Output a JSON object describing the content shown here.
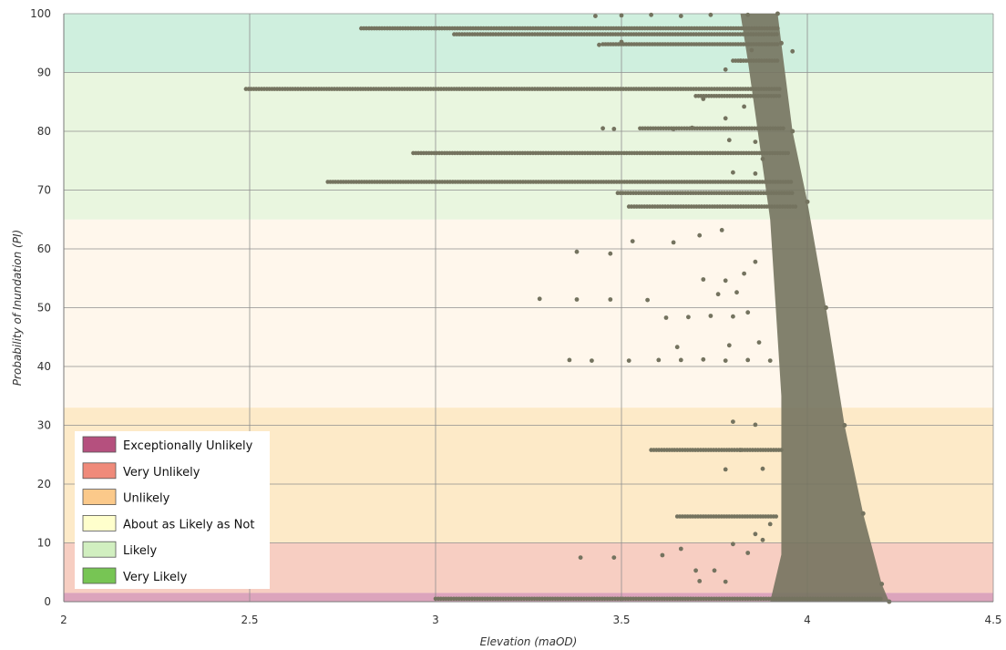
{
  "chart_data": {
    "type": "scatter",
    "title": "",
    "xlabel": "Elevation (maOD)",
    "ylabel": "Probability of Inundation (PI)",
    "xlim": [
      2,
      4.5
    ],
    "ylim": [
      0,
      100
    ],
    "x_ticks": [
      2,
      2.5,
      3,
      3.5,
      4,
      4.5
    ],
    "y_ticks": [
      0,
      10,
      20,
      30,
      40,
      50,
      60,
      70,
      80,
      90,
      100
    ],
    "grid": true,
    "legend_position": "bottom-left",
    "point_color": "#74735f",
    "bands": [
      {
        "name": "Exceptionally Unlikely",
        "from": 0,
        "to": 1.5,
        "color": "#c05a85"
      },
      {
        "name": "Very Unlikely",
        "from": 1.5,
        "to": 10,
        "color": "#f1a690"
      },
      {
        "name": "Unlikely",
        "from": 10,
        "to": 33,
        "color": "#fcd99a"
      },
      {
        "name": "About as Likely as Not",
        "from": 33,
        "to": 65,
        "color": "#fff0dd"
      },
      {
        "name": "Likely",
        "from": 65,
        "to": 90,
        "color": "#d7eec4"
      },
      {
        "name": "Very Likely",
        "from": 90,
        "to": 100,
        "color": "#a8e2c2"
      }
    ],
    "legend": [
      {
        "label": "Exceptionally Unlikely",
        "color": "#b5507e"
      },
      {
        "label": "Very Unlikely",
        "color": "#ef8a7a"
      },
      {
        "label": "Unlikely",
        "color": "#fbc98a"
      },
      {
        "label": "About as Likely as Not",
        "color": "#ffffcc"
      },
      {
        "label": "Likely",
        "color": "#d1efc0"
      },
      {
        "label": "Very Likely",
        "color": "#77c554"
      }
    ],
    "boundary_series": {
      "name": "",
      "x": [
        3.92,
        3.93,
        3.96,
        4.0,
        4.05,
        4.1,
        4.15,
        4.2,
        4.22
      ],
      "y": [
        100,
        95,
        80,
        68,
        50,
        30,
        15,
        3,
        0
      ]
    },
    "horizontal_runs": [
      {
        "y": 97.5,
        "x_from": 2.8,
        "x_to": 3.92
      },
      {
        "y": 96.5,
        "x_from": 3.05,
        "x_to": 3.92
      },
      {
        "y": 94.8,
        "x_from": 3.45,
        "x_to": 3.92
      },
      {
        "y": 92.0,
        "x_from": 3.8,
        "x_to": 3.92
      },
      {
        "y": 87.2,
        "x_from": 2.49,
        "x_to": 3.93
      },
      {
        "y": 86.0,
        "x_from": 3.7,
        "x_to": 3.93
      },
      {
        "y": 80.5,
        "x_from": 3.55,
        "x_to": 3.94
      },
      {
        "y": 76.3,
        "x_from": 2.94,
        "x_to": 3.95
      },
      {
        "y": 71.4,
        "x_from": 2.71,
        "x_to": 3.96
      },
      {
        "y": 69.5,
        "x_from": 3.49,
        "x_to": 3.96
      },
      {
        "y": 67.2,
        "x_from": 3.52,
        "x_to": 3.97
      },
      {
        "y": 25.8,
        "x_from": 3.58,
        "x_to": 3.93
      },
      {
        "y": 14.5,
        "x_from": 3.65,
        "x_to": 3.92
      },
      {
        "y": 0.5,
        "x_from": 3.0,
        "x_to": 4.2
      }
    ],
    "scattered_points": [
      {
        "x": 3.28,
        "y": 51.5
      },
      {
        "x": 3.38,
        "y": 59.5
      },
      {
        "x": 3.47,
        "y": 59.2
      },
      {
        "x": 3.53,
        "y": 61.3
      },
      {
        "x": 3.64,
        "y": 61.1
      },
      {
        "x": 3.71,
        "y": 62.3
      },
      {
        "x": 3.77,
        "y": 63.2
      },
      {
        "x": 3.38,
        "y": 51.4
      },
      {
        "x": 3.47,
        "y": 51.4
      },
      {
        "x": 3.57,
        "y": 51.3
      },
      {
        "x": 3.62,
        "y": 48.3
      },
      {
        "x": 3.68,
        "y": 48.4
      },
      {
        "x": 3.74,
        "y": 48.6
      },
      {
        "x": 3.8,
        "y": 48.5
      },
      {
        "x": 3.84,
        "y": 49.2
      },
      {
        "x": 3.36,
        "y": 41.1
      },
      {
        "x": 3.42,
        "y": 41.0
      },
      {
        "x": 3.52,
        "y": 41.0
      },
      {
        "x": 3.6,
        "y": 41.1
      },
      {
        "x": 3.66,
        "y": 41.1
      },
      {
        "x": 3.72,
        "y": 41.2
      },
      {
        "x": 3.78,
        "y": 41.0
      },
      {
        "x": 3.84,
        "y": 41.1
      },
      {
        "x": 3.9,
        "y": 41.0
      },
      {
        "x": 3.65,
        "y": 43.3
      },
      {
        "x": 3.79,
        "y": 43.6
      },
      {
        "x": 3.87,
        "y": 44.1
      },
      {
        "x": 3.72,
        "y": 54.8
      },
      {
        "x": 3.78,
        "y": 54.6
      },
      {
        "x": 3.83,
        "y": 55.8
      },
      {
        "x": 3.76,
        "y": 52.3
      },
      {
        "x": 3.81,
        "y": 52.6
      },
      {
        "x": 3.86,
        "y": 57.8
      },
      {
        "x": 3.8,
        "y": 30.6
      },
      {
        "x": 3.86,
        "y": 30.1
      },
      {
        "x": 3.82,
        "y": 25.8
      },
      {
        "x": 3.78,
        "y": 22.5
      },
      {
        "x": 3.88,
        "y": 22.6
      },
      {
        "x": 3.39,
        "y": 7.5
      },
      {
        "x": 3.48,
        "y": 7.5
      },
      {
        "x": 3.61,
        "y": 7.9
      },
      {
        "x": 3.66,
        "y": 9.0
      },
      {
        "x": 3.7,
        "y": 5.3
      },
      {
        "x": 3.75,
        "y": 5.3
      },
      {
        "x": 3.8,
        "y": 9.8
      },
      {
        "x": 3.84,
        "y": 8.3
      },
      {
        "x": 3.71,
        "y": 3.5
      },
      {
        "x": 3.78,
        "y": 3.4
      },
      {
        "x": 3.86,
        "y": 11.5
      },
      {
        "x": 3.9,
        "y": 13.2
      },
      {
        "x": 3.88,
        "y": 10.5
      },
      {
        "x": 3.64,
        "y": 80.4
      },
      {
        "x": 3.69,
        "y": 80.6
      },
      {
        "x": 3.78,
        "y": 82.2
      },
      {
        "x": 3.83,
        "y": 84.2
      },
      {
        "x": 3.79,
        "y": 78.5
      },
      {
        "x": 3.86,
        "y": 78.2
      },
      {
        "x": 3.8,
        "y": 73.0
      },
      {
        "x": 3.86,
        "y": 72.8
      },
      {
        "x": 3.48,
        "y": 80.4
      },
      {
        "x": 3.45,
        "y": 80.5
      },
      {
        "x": 3.72,
        "y": 85.5
      },
      {
        "x": 3.78,
        "y": 90.5
      },
      {
        "x": 3.82,
        "y": 92.0
      },
      {
        "x": 3.85,
        "y": 93.8
      },
      {
        "x": 3.96,
        "y": 93.6
      },
      {
        "x": 3.43,
        "y": 99.6
      },
      {
        "x": 3.5,
        "y": 99.7
      },
      {
        "x": 3.58,
        "y": 99.8
      },
      {
        "x": 3.66,
        "y": 99.6
      },
      {
        "x": 3.74,
        "y": 99.8
      },
      {
        "x": 3.84,
        "y": 99.8
      },
      {
        "x": 3.44,
        "y": 94.7
      },
      {
        "x": 3.5,
        "y": 95.2
      },
      {
        "x": 3.88,
        "y": 75.3
      }
    ]
  }
}
